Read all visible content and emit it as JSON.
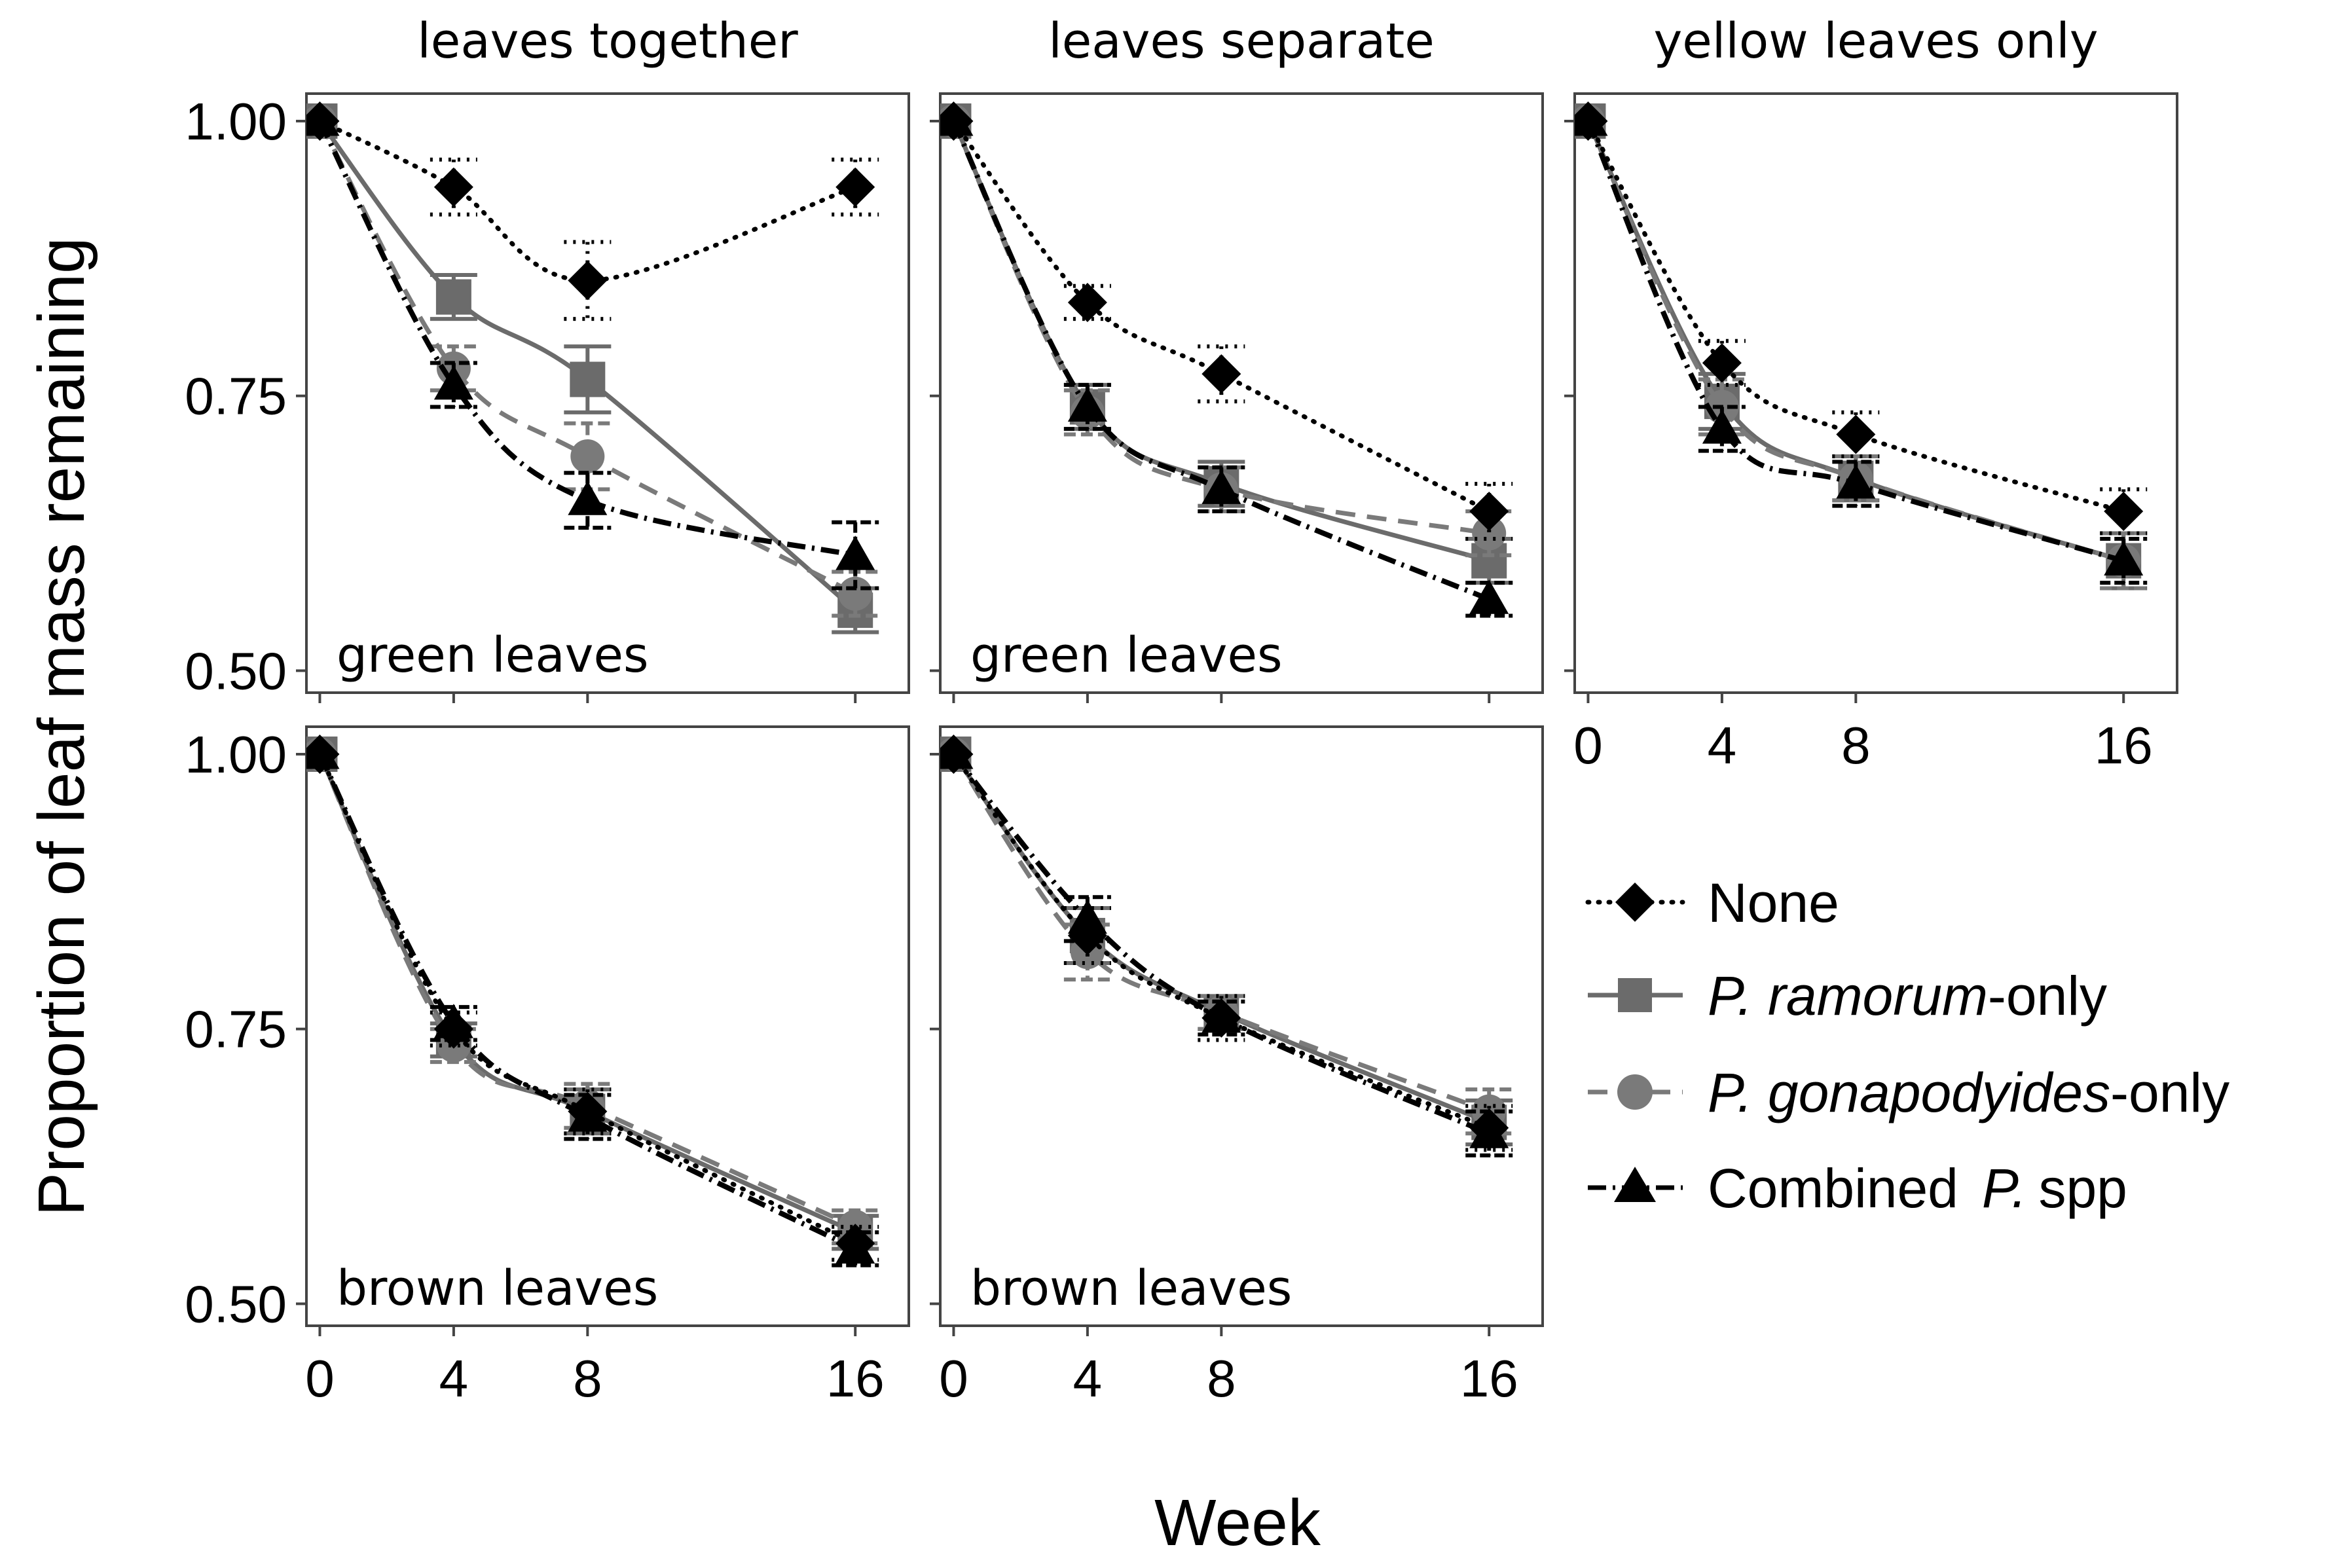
{
  "chart_data": {
    "type": "line",
    "x": [
      0,
      4,
      8,
      16
    ],
    "xlabel": "Week",
    "ylabel": "Proportion of leaf mass remaining",
    "xticks": [
      "0",
      "4",
      "8",
      "16"
    ],
    "yticks": [
      "0.50",
      "0.75",
      "1.00"
    ],
    "ylim": [
      0.48,
      1.025
    ],
    "panels": [
      {
        "facet": "leaves together",
        "inset": "green leaves",
        "series": [
          {
            "name": "None",
            "values": [
              1.0,
              0.94,
              0.855,
              0.94
            ],
            "errors": [
              0,
              0.025,
              0.035,
              0.025
            ]
          },
          {
            "name": "P. ramorum-only",
            "values": [
              1.0,
              0.84,
              0.765,
              0.555
            ],
            "errors": [
              0,
              0.02,
              0.03,
              0.02
            ]
          },
          {
            "name": "P. gonapodyides-only",
            "values": [
              1.0,
              0.775,
              0.695,
              0.57
            ],
            "errors": [
              0,
              0.02,
              0.03,
              0.02
            ]
          },
          {
            "name": "Combined P. spp",
            "values": [
              1.0,
              0.76,
              0.655,
              0.605
            ],
            "errors": [
              0,
              0.02,
              0.025,
              0.03
            ]
          }
        ]
      },
      {
        "facet": "leaves separate",
        "inset": "green leaves",
        "series": [
          {
            "name": "None",
            "values": [
              1.0,
              0.835,
              0.77,
              0.645
            ],
            "errors": [
              0,
              0.015,
              0.025,
              0.025
            ]
          },
          {
            "name": "P. ramorum-only",
            "values": [
              1.0,
              0.74,
              0.67,
              0.6
            ],
            "errors": [
              0,
              0.02,
              0.02,
              0.02
            ]
          },
          {
            "name": "P. gonapodyides-only",
            "values": [
              1.0,
              0.735,
              0.665,
              0.625
            ],
            "errors": [
              0,
              0.02,
              0.02,
              0.02
            ]
          },
          {
            "name": "Combined P. spp",
            "values": [
              1.0,
              0.74,
              0.665,
              0.565
            ],
            "errors": [
              0,
              0.02,
              0.02,
              0.015
            ]
          }
        ]
      },
      {
        "facet": "yellow leaves only",
        "inset": "",
        "series": [
          {
            "name": "None",
            "values": [
              1.0,
              0.78,
              0.715,
              0.645
            ],
            "errors": [
              0,
              0.02,
              0.02,
              0.02
            ]
          },
          {
            "name": "P. ramorum-only",
            "values": [
              1.0,
              0.745,
              0.675,
              0.6
            ],
            "errors": [
              0,
              0.025,
              0.02,
              0.025
            ]
          },
          {
            "name": "P. gonapodyides-only",
            "values": [
              1.0,
              0.74,
              0.675,
              0.6
            ],
            "errors": [
              0,
              0.025,
              0.02,
              0.025
            ]
          },
          {
            "name": "Combined P. spp",
            "values": [
              1.0,
              0.72,
              0.67,
              0.6
            ],
            "errors": [
              0,
              0.02,
              0.02,
              0.02
            ]
          }
        ]
      },
      {
        "facet": "",
        "inset": "brown leaves",
        "series": [
          {
            "name": "None",
            "values": [
              1.0,
              0.75,
              0.675,
              0.555
            ],
            "errors": [
              0,
              0.015,
              0.02,
              0.015
            ]
          },
          {
            "name": "P. ramorum-only",
            "values": [
              1.0,
              0.74,
              0.675,
              0.565
            ],
            "errors": [
              0,
              0.015,
              0.02,
              0.015
            ]
          },
          {
            "name": "P. gonapodyides-only",
            "values": [
              1.0,
              0.735,
              0.68,
              0.57
            ],
            "errors": [
              0,
              0.015,
              0.02,
              0.015
            ]
          },
          {
            "name": "Combined P. spp",
            "values": [
              1.0,
              0.755,
              0.67,
              0.55
            ],
            "errors": [
              0,
              0.015,
              0.02,
              0.015
            ]
          }
        ]
      },
      {
        "facet": "",
        "inset": "brown leaves",
        "series": [
          {
            "name": "None",
            "values": [
              1.0,
              0.835,
              0.76,
              0.66
            ],
            "errors": [
              0,
              0.025,
              0.02,
              0.02
            ]
          },
          {
            "name": "P. ramorum-only",
            "values": [
              1.0,
              0.835,
              0.765,
              0.665
            ],
            "errors": [
              0,
              0.025,
              0.015,
              0.02
            ]
          },
          {
            "name": "P. gonapodyides-only",
            "values": [
              1.0,
              0.82,
              0.765,
              0.675
            ],
            "errors": [
              0,
              0.025,
              0.015,
              0.02
            ]
          },
          {
            "name": "Combined P. spp",
            "values": [
              1.0,
              0.85,
              0.76,
              0.655
            ],
            "errors": [
              0,
              0.02,
              0.015,
              0.02
            ]
          }
        ]
      }
    ],
    "legend": [
      {
        "species": "",
        "suffix": "None"
      },
      {
        "species": "P. ramorum",
        "suffix": "-only"
      },
      {
        "species": "P. gonapodyides",
        "suffix": "-only"
      },
      {
        "species": "P.",
        "prefix": "Combined",
        "suffix": "spp"
      }
    ],
    "colors": {
      "None": "#000000",
      "P. ramorum-only": "#6b6b6b",
      "P. gonapodyides-only": "#7a7a7a",
      "Combined P. spp": "#000000"
    }
  }
}
